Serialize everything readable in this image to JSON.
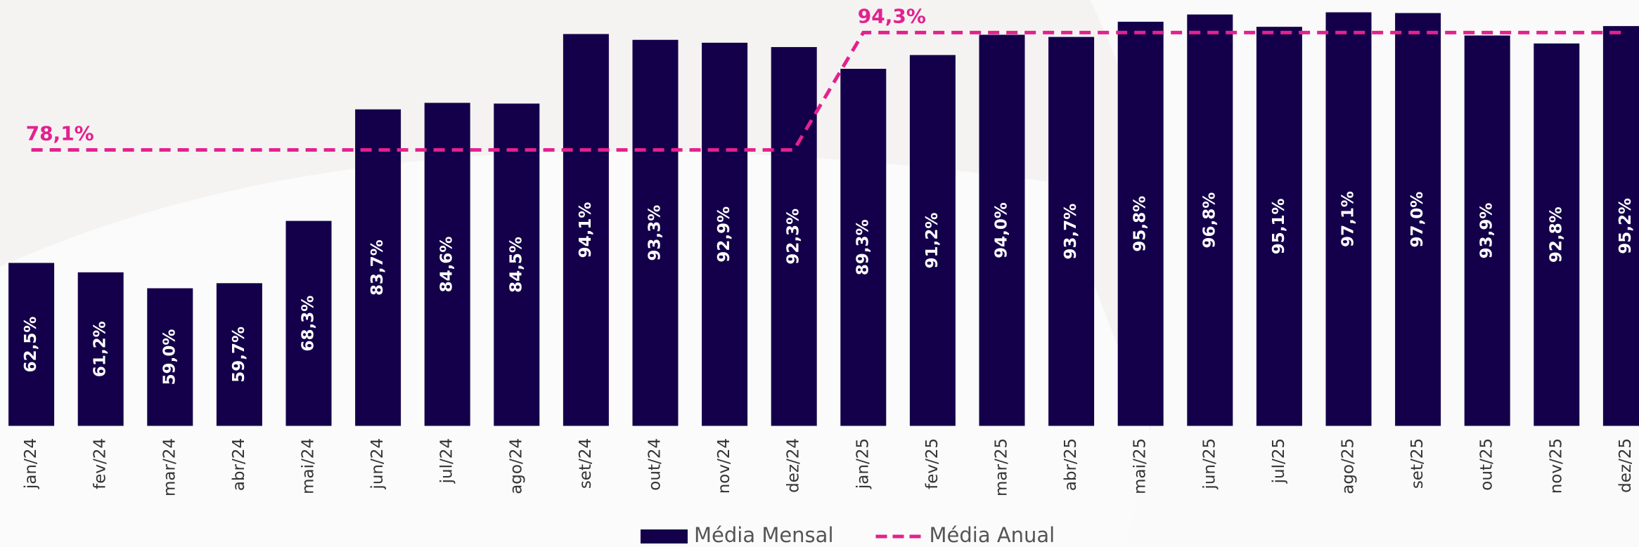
{
  "chart_data": {
    "type": "bar",
    "categories": [
      "jan/24",
      "fev/24",
      "mar/24",
      "abr/24",
      "mai/24",
      "jun/24",
      "jul/24",
      "ago/24",
      "set/24",
      "out/24",
      "nov/24",
      "dez/24",
      "jan/25",
      "fev/25",
      "mar/25",
      "abr/25",
      "mai/25",
      "jun/25",
      "jul/25",
      "ago/25",
      "set/25",
      "out/25",
      "nov/25",
      "dez/25"
    ],
    "series": [
      {
        "name": "Média Mensal",
        "color": "#14004a",
        "values": [
          62.5,
          61.2,
          59.0,
          59.7,
          68.3,
          83.7,
          84.6,
          84.5,
          94.1,
          93.3,
          92.9,
          92.3,
          89.3,
          91.2,
          94.0,
          93.7,
          95.8,
          96.8,
          95.1,
          97.1,
          97.0,
          93.9,
          92.8,
          95.2
        ],
        "value_labels": [
          "62,5%",
          "61,2%",
          "59,0%",
          "59,7%",
          "68,3%",
          "83,7%",
          "84,6%",
          "84,5%",
          "94,1%",
          "93,3%",
          "92,9%",
          "92,3%",
          "89,3%",
          "91,2%",
          "94,0%",
          "93,7%",
          "95,8%",
          "96,8%",
          "95,1%",
          "97,1%",
          "97,0%",
          "93,9%",
          "92,8%",
          "95,2%"
        ]
      },
      {
        "name": "Média Anual",
        "type": "line",
        "color": "#e3218f",
        "dashed": true,
        "values": [
          78.1,
          78.1,
          78.1,
          78.1,
          78.1,
          78.1,
          78.1,
          78.1,
          78.1,
          78.1,
          78.1,
          78.1,
          94.3,
          94.3,
          94.3,
          94.3,
          94.3,
          94.3,
          94.3,
          94.3,
          94.3,
          94.3,
          94.3,
          94.3
        ],
        "value_labels": [
          "78,1%",
          null,
          null,
          null,
          null,
          null,
          null,
          null,
          null,
          null,
          null,
          null,
          "94,3%",
          null,
          null,
          null,
          null,
          null,
          null,
          null,
          null,
          null,
          null,
          null
        ]
      }
    ],
    "ylim": [
      40,
      98.8
    ],
    "legend": "bottom"
  }
}
